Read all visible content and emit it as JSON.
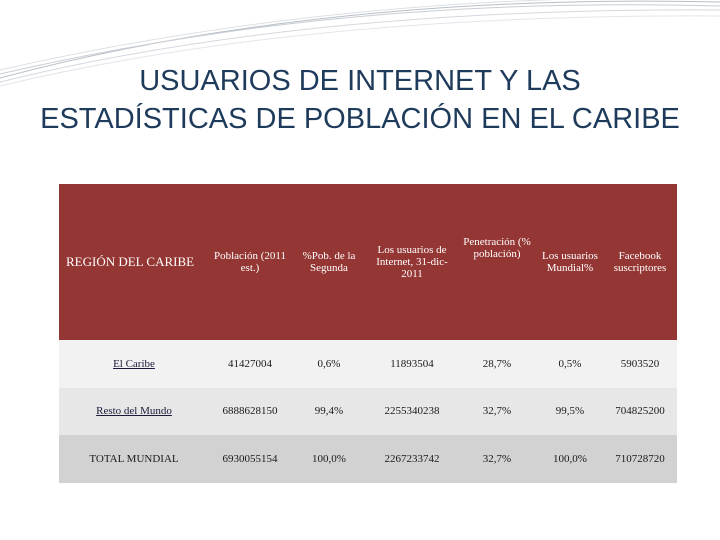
{
  "title": {
    "line1": "USUARIOS DE INTERNET Y LAS",
    "line2": "ESTADÍSTICAS DE POBLACIÓN EN EL CARIBE"
  },
  "table": {
    "headers": {
      "region": "REGIÓN DEL CARIBE",
      "population": "Población (2011 est.)",
      "pct_population": "%Pob. de la Segunda",
      "internet_users": "Los usuarios de Internet, 31-dic-2011",
      "penetration": "Penetración (% población)",
      "world_users": "Los usuarios Mundial%",
      "facebook": "Facebook suscriptores"
    },
    "rows": [
      {
        "region": "El Caribe",
        "population": "41427004",
        "pct_population": "0,6%",
        "internet_users": "11893504",
        "penetration": "28,7%",
        "world_users": "0,5%",
        "facebook": "5903520"
      },
      {
        "region": "Resto del Mundo",
        "population": "6888628150",
        "pct_population": "99,4%",
        "internet_users": "2255340238",
        "penetration": "32,7%",
        "world_users": "99,5%",
        "facebook": "704825200"
      },
      {
        "region": "TOTAL MUNDIAL",
        "population": "6930055154",
        "pct_population": "100,0%",
        "internet_users": "2267233742",
        "penetration": "32,7%",
        "world_users": "100,0%",
        "facebook": "710728720"
      }
    ]
  },
  "colors": {
    "header_bg": "#943634",
    "title": "#1f3b5b"
  }
}
